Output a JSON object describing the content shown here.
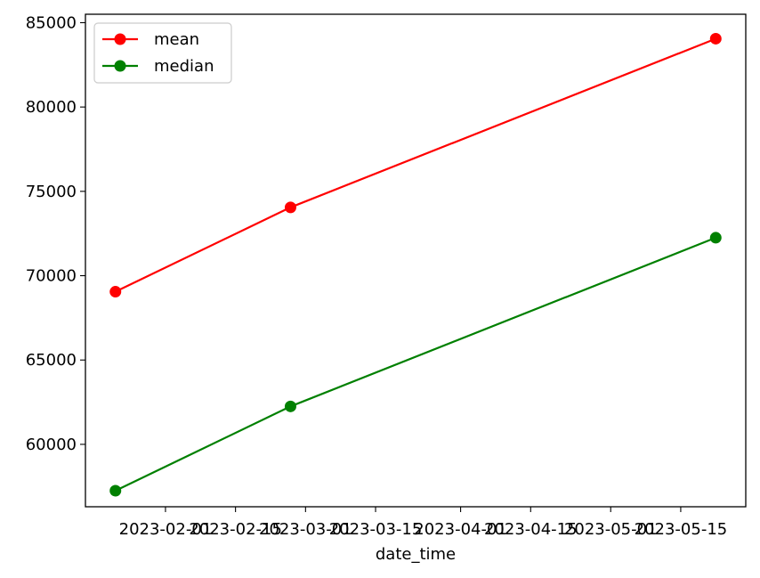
{
  "chart_data": {
    "type": "line",
    "title": "",
    "xlabel": "date_time",
    "ylabel": "",
    "x": [
      "2023-01-22",
      "2023-02-26",
      "2023-05-22"
    ],
    "series": [
      {
        "name": "mean",
        "color": "#ff0000",
        "values": [
          69050,
          74050,
          84050
        ]
      },
      {
        "name": "median",
        "color": "#008000",
        "values": [
          57250,
          62250,
          72250
        ]
      }
    ],
    "xticks": [
      "2023-02-01",
      "2023-02-15",
      "2023-03-01",
      "2023-03-15",
      "2023-04-01",
      "2023-04-15",
      "2023-05-01",
      "2023-05-15"
    ],
    "yticks": [
      60000,
      65000,
      70000,
      75000,
      80000,
      85000
    ],
    "xlim": [
      "2023-01-16",
      "2023-05-28"
    ],
    "ylim": [
      56300,
      85500
    ],
    "grid": false,
    "legend_position": "top-left"
  }
}
